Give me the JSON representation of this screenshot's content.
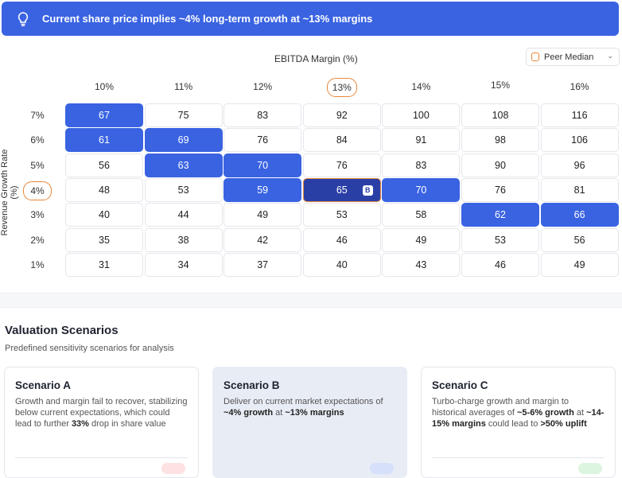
{
  "banner": {
    "icon": "lightbulb-icon",
    "text": "Current share price implies ~4% long-term growth at ~13% margins"
  },
  "grid": {
    "x_title": "EBITDA Margin (%)",
    "y_title": "Revenue Growth Rate (%)",
    "peer_select": {
      "label": "Peer Median",
      "checked": false
    },
    "columns": [
      "10%",
      "11%",
      "12%",
      "13%",
      "14%",
      "15%",
      "16%"
    ],
    "marked_column": 3,
    "rows": [
      {
        "label": "7%",
        "values": [
          67,
          75,
          83,
          92,
          100,
          108,
          116
        ],
        "highlight": [
          0
        ]
      },
      {
        "label": "6%",
        "values": [
          61,
          69,
          76,
          84,
          91,
          98,
          106
        ],
        "highlight": [
          0,
          1
        ]
      },
      {
        "label": "5%",
        "values": [
          56,
          63,
          70,
          76,
          83,
          90,
          96
        ],
        "highlight": [
          1,
          2
        ]
      },
      {
        "label": "4%",
        "values": [
          48,
          53,
          59,
          65,
          70,
          76,
          81
        ],
        "highlight": [
          2,
          4
        ]
      },
      {
        "label": "3%",
        "values": [
          40,
          44,
          49,
          53,
          58,
          62,
          66
        ],
        "highlight": [
          5,
          6
        ]
      },
      {
        "label": "2%",
        "values": [
          35,
          38,
          42,
          46,
          49,
          53,
          56
        ],
        "highlight": []
      },
      {
        "label": "1%",
        "values": [
          31,
          34,
          37,
          40,
          43,
          46,
          49
        ],
        "highlight": []
      }
    ],
    "marked_row": 3,
    "base_cell": {
      "row": 3,
      "col": 3,
      "badge": "B"
    },
    "colors": {
      "highlight": "#3a63e2",
      "base": "#2a3fa6",
      "marker": "#e8873a"
    }
  },
  "scenarios": {
    "title": "Valuation Scenarios",
    "subtitle": "Predefined sensitivity scenarios for analysis",
    "cards": [
      {
        "title": "Scenario A",
        "html": "Growth and margin fail to recover, stabilizing below current expectations, which could lead to further <b>33%</b> drop in share value",
        "badge_color": "#fde2e2"
      },
      {
        "title": "Scenario B",
        "html": "Deliver on current market expectations of <b>~4% growth</b> at <b>~13% margins</b>",
        "badge_color": "#d6e0fb"
      },
      {
        "title": "Scenario C",
        "html": "Turbo-charge growth and margin to historical averages of <b>~5-6% growth</b> at <b>~14-15% margins</b> could lead to <b>&gt;50% uplift</b>",
        "badge_color": "#dcf5e0"
      }
    ]
  }
}
